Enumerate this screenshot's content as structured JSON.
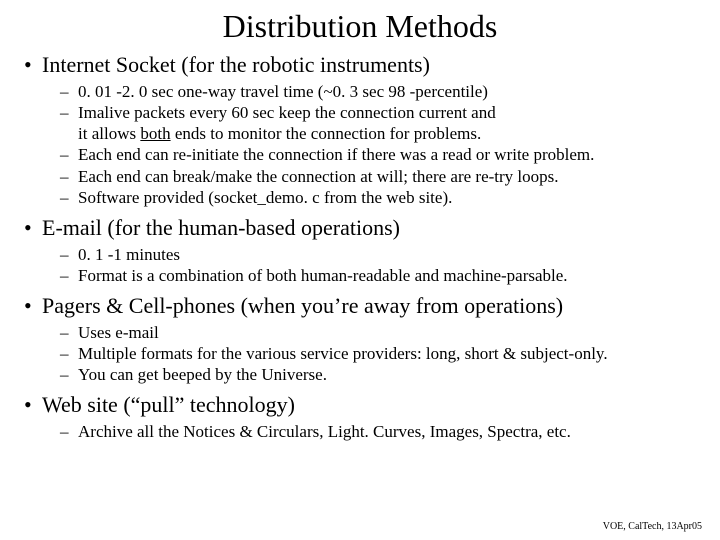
{
  "title": "Distribution  Methods",
  "footer": "VOE, CalTech, 13Apr05",
  "colors": {
    "background": "#ffffff",
    "text": "#000000",
    "title": "#000000"
  },
  "typography": {
    "title_fontsize": 32,
    "bullet_fontsize": 22,
    "sub_fontsize": 17,
    "footer_fontsize": 10,
    "font_family": "Times New Roman"
  },
  "items": [
    {
      "label": "Internet Socket   (for the robotic instruments)",
      "subs": [
        "0. 01 -2. 0 sec  one-way travel time  (~0. 3 sec  98 -percentile)",
        "Imalive packets every 60 sec keep the connection current    and",
        "it allows ",
        " ends to monitor the connection for problems.",
        "Each end can re-initiate the connection if there was a read or write problem.",
        "Each end can break/make the connection at will;  there are re-try loops.",
        "Software provided  (socket_demo. c from the web site)."
      ],
      "underline_word": "both"
    },
    {
      "label": "E-mail   (for the human-based operations)",
      "subs": [
        "0. 1 -1 minutes",
        "Format is a combination of both human-readable and machine-parsable."
      ]
    },
    {
      "label": "Pagers & Cell-phones  (when you’re away from operations)",
      "subs": [
        "Uses e-mail",
        "Multiple formats for the various service providers:  long, short & subject-only.",
        "You can get beeped by the Universe."
      ]
    },
    {
      "label": "Web site  (“pull” technology)",
      "subs": [
        "Archive  all the Notices & Circulars, Light. Curves, Images, Spectra, etc."
      ]
    }
  ]
}
